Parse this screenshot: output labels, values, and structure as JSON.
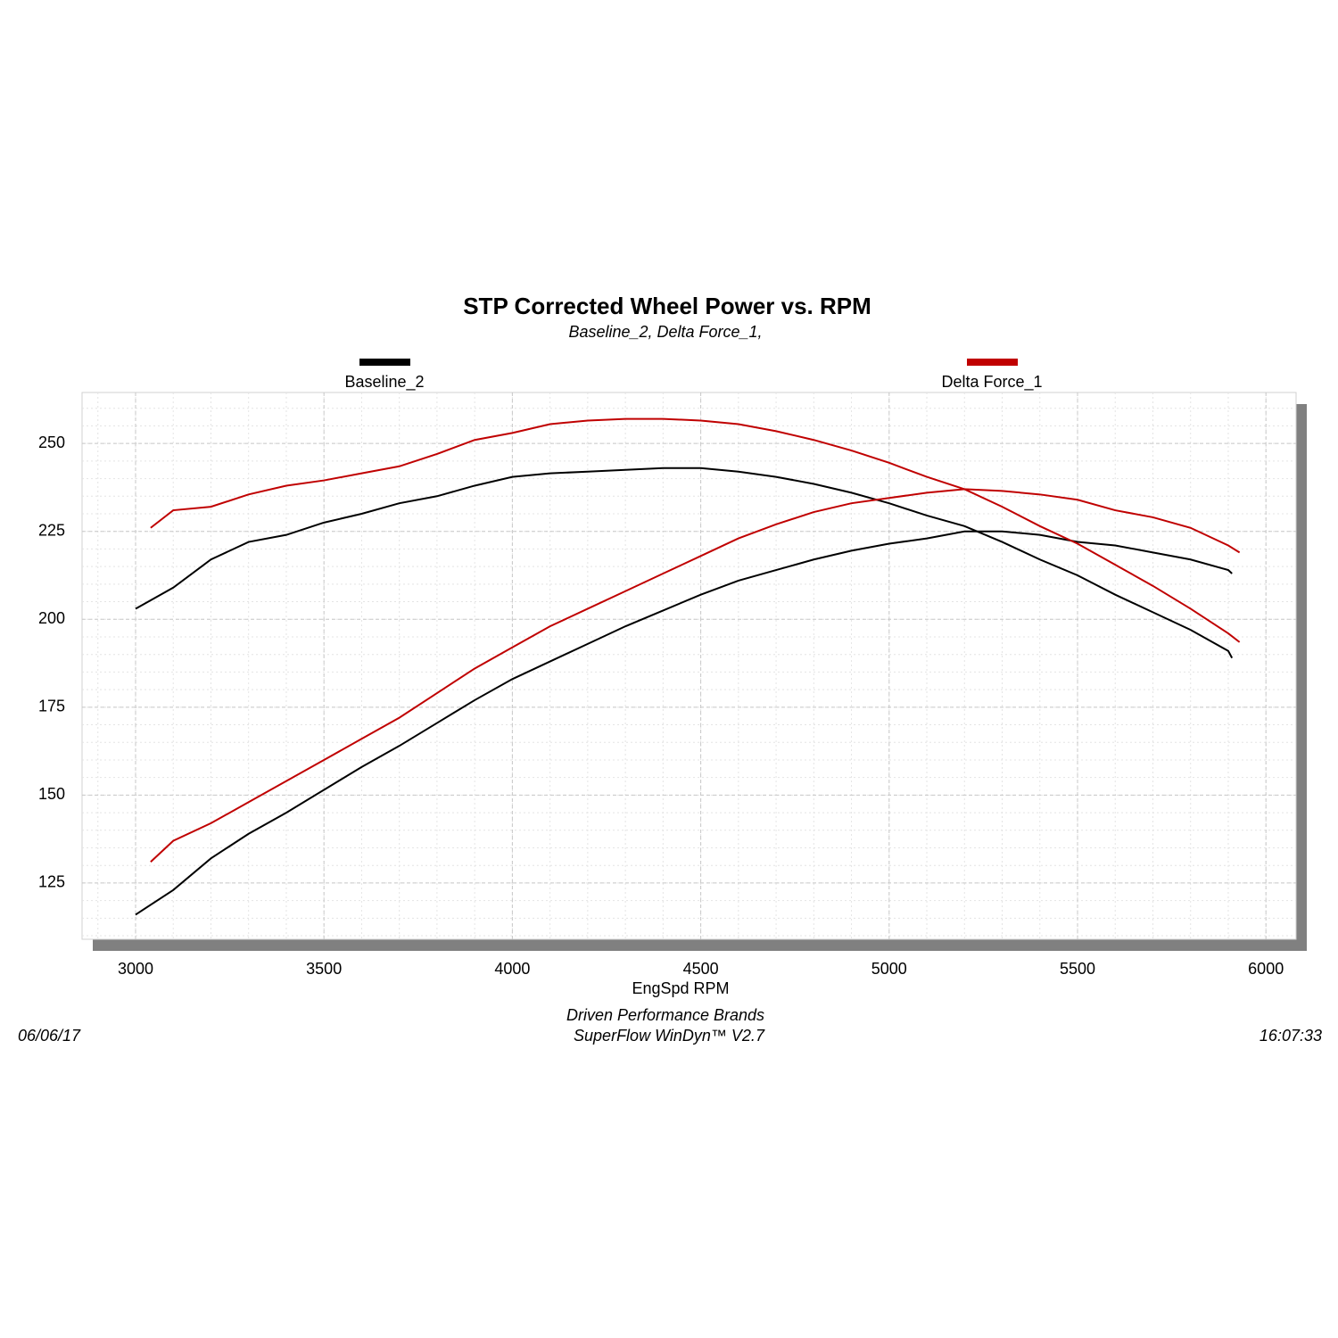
{
  "chart_data": {
    "type": "line",
    "title": "STP Corrected Wheel Power vs. RPM",
    "subtitle": "Baseline_2, Delta Force_1,",
    "x_label": "EngSpd  RPM",
    "footer": [
      "Driven Performance Brands",
      "SuperFlow WinDyn™ V2.7"
    ],
    "date": "06/06/17",
    "time": "16:07:33",
    "xlim": [
      2858,
      6080
    ],
    "ylim": [
      109,
      264.5
    ],
    "xticks": [
      3000,
      3500,
      4000,
      4500,
      5000,
      5500,
      6000
    ],
    "yticks": [
      125,
      150,
      175,
      200,
      225,
      250
    ],
    "grid": true,
    "series": [
      {
        "name": "Baseline_2",
        "color": "#000000",
        "x": [
          3000,
          3100,
          3200,
          3300,
          3400,
          3500,
          3600,
          3700,
          3800,
          3900,
          4000,
          4100,
          4200,
          4300,
          4400,
          4500,
          4600,
          4700,
          4800,
          4900,
          5000,
          5100,
          5200,
          5300,
          5400,
          5500,
          5600,
          5700,
          5800,
          5900,
          5910
        ],
        "values": [
          203,
          209,
          217,
          222,
          224,
          227.5,
          230,
          233,
          235,
          238,
          240.5,
          241.5,
          242,
          242.5,
          243,
          243,
          242,
          240.5,
          238.5,
          236,
          233,
          229.5,
          226.5,
          222,
          217,
          212.5,
          207,
          202,
          197,
          191,
          189
        ]
      },
      {
        "name": "Baseline_2",
        "color": "#000000",
        "x": [
          3000,
          3100,
          3200,
          3300,
          3400,
          3500,
          3600,
          3700,
          3800,
          3900,
          4000,
          4100,
          4200,
          4300,
          4400,
          4500,
          4600,
          4700,
          4800,
          4900,
          5000,
          5100,
          5200,
          5300,
          5400,
          5500,
          5600,
          5700,
          5800,
          5900,
          5910
        ],
        "values": [
          116,
          123,
          132,
          139,
          145,
          151.5,
          158,
          164,
          170.5,
          177,
          183,
          188,
          193,
          198,
          202.5,
          207,
          211,
          214,
          217,
          219.5,
          221.5,
          223,
          225,
          225,
          224,
          222,
          221,
          219,
          217,
          214,
          213
        ]
      },
      {
        "name": "Delta Force_1",
        "color": "#c00000",
        "x": [
          3040,
          3100,
          3200,
          3300,
          3400,
          3500,
          3600,
          3700,
          3800,
          3900,
          4000,
          4100,
          4200,
          4300,
          4400,
          4500,
          4600,
          4700,
          4800,
          4900,
          5000,
          5100,
          5200,
          5300,
          5400,
          5500,
          5600,
          5700,
          5800,
          5900,
          5930
        ],
        "values": [
          226,
          231,
          232,
          235.5,
          238,
          239.5,
          241.5,
          243.5,
          247,
          251,
          253,
          255.5,
          256.5,
          257,
          257,
          256.5,
          255.5,
          253.5,
          251,
          248,
          244.5,
          240.5,
          237,
          232,
          226.5,
          221.5,
          215.5,
          209.5,
          203,
          196,
          193.5
        ]
      },
      {
        "name": "Delta Force_1",
        "color": "#c00000",
        "x": [
          3040,
          3100,
          3200,
          3300,
          3400,
          3500,
          3600,
          3700,
          3800,
          3900,
          4000,
          4100,
          4200,
          4300,
          4400,
          4500,
          4600,
          4700,
          4800,
          4900,
          5000,
          5100,
          5200,
          5300,
          5400,
          5500,
          5600,
          5700,
          5800,
          5900,
          5930
        ],
        "values": [
          131,
          137,
          142,
          148,
          154,
          160,
          166,
          172,
          179,
          186,
          192,
          198,
          203,
          208,
          213,
          218,
          223,
          227,
          230.5,
          233,
          234.5,
          236,
          237,
          236.5,
          235.5,
          234,
          231,
          229,
          226,
          221,
          219
        ]
      }
    ]
  }
}
